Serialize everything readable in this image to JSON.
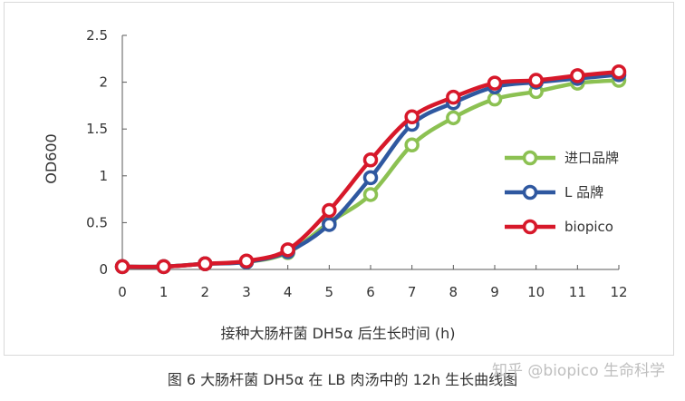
{
  "chart_data": {
    "type": "line",
    "title": "",
    "xlabel": "接种大肠杆菌 DH5α 后生长时间 (h)",
    "ylabel": "OD600",
    "x": [
      0,
      1,
      2,
      3,
      4,
      5,
      6,
      7,
      8,
      9,
      10,
      11,
      12
    ],
    "xlim": [
      0,
      12
    ],
    "ylim": [
      0,
      2.5
    ],
    "x_ticks": [
      "0",
      "1",
      "2",
      "3",
      "4",
      "5",
      "6",
      "7",
      "8",
      "9",
      "10",
      "11",
      "12"
    ],
    "y_ticks": [
      "0",
      "0.5",
      "1",
      "1.5",
      "2",
      "2.5"
    ],
    "grid": false,
    "legend_position": "right",
    "series": [
      {
        "name": "进口品牌",
        "color": "#8cc152",
        "values": [
          0.03,
          0.03,
          0.06,
          0.08,
          0.18,
          0.5,
          0.8,
          1.33,
          1.62,
          1.82,
          1.9,
          1.99,
          2.02
        ]
      },
      {
        "name": "L 品牌",
        "color": "#2f58a0",
        "values": [
          0.03,
          0.03,
          0.06,
          0.08,
          0.19,
          0.48,
          0.98,
          1.55,
          1.78,
          1.95,
          2.0,
          2.04,
          2.08
        ]
      },
      {
        "name": "biopico",
        "color": "#d7182a",
        "values": [
          0.03,
          0.03,
          0.06,
          0.09,
          0.21,
          0.63,
          1.17,
          1.63,
          1.84,
          1.99,
          2.02,
          2.07,
          2.11
        ]
      }
    ]
  },
  "caption": "图 6  大肠杆菌 DH5α 在 LB 肉汤中的 12h 生长曲线图",
  "watermark": "知乎 @biopico 生命科学"
}
